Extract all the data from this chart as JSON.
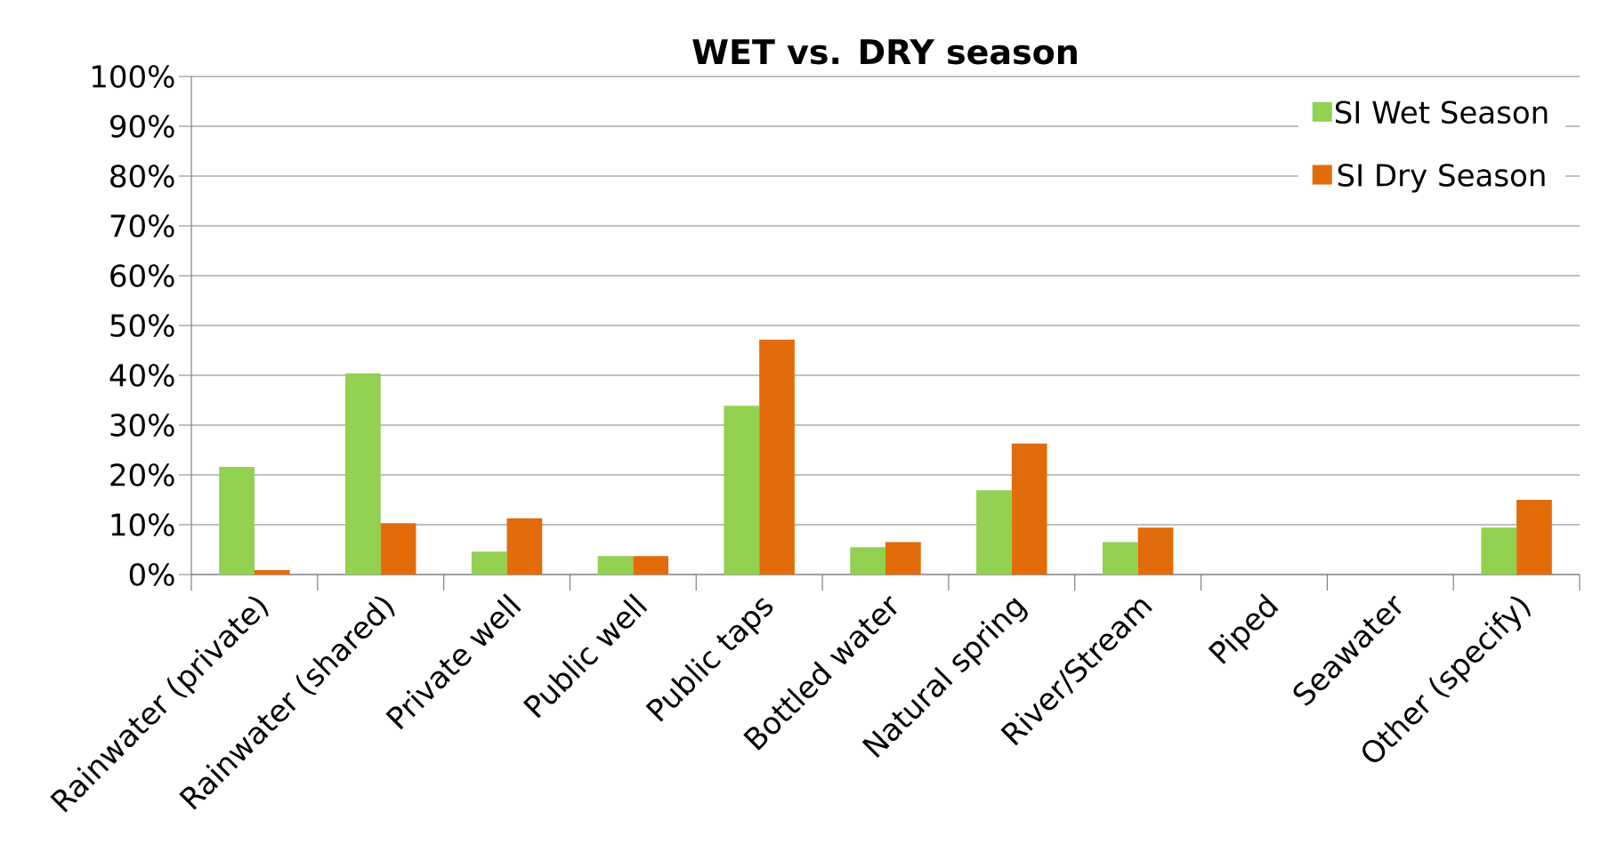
{
  "chart_data": {
    "type": "bar",
    "title": "WET vs. DRY season",
    "categories": [
      "Rainwater (private)",
      "Rainwater (shared)",
      "Private well",
      "Public well",
      "Public taps",
      "Bottled water",
      "Natural spring",
      "River/Stream",
      "Piped",
      "Seawater",
      "Other (specify)"
    ],
    "series": [
      {
        "name": "SI Wet Season",
        "color": "#92d050",
        "values": [
          21.6,
          40.4,
          4.6,
          3.7,
          33.9,
          5.5,
          16.9,
          6.5,
          0,
          0,
          9.4
        ]
      },
      {
        "name": "SI Dry Season",
        "color": "#e36c0a",
        "values": [
          0.9,
          10.3,
          11.3,
          3.7,
          47.2,
          6.5,
          26.3,
          9.4,
          0,
          0,
          15.0
        ]
      }
    ],
    "ylim": [
      0,
      100
    ],
    "yticks": [
      {
        "value": 0,
        "label": "0%"
      },
      {
        "value": 10,
        "label": "10%"
      },
      {
        "value": 20,
        "label": "20%"
      },
      {
        "value": 30,
        "label": "30%"
      },
      {
        "value": 40,
        "label": "40%"
      },
      {
        "value": 50,
        "label": "50%"
      },
      {
        "value": 60,
        "label": "60%"
      },
      {
        "value": 70,
        "label": "70%"
      },
      {
        "value": 80,
        "label": "80%"
      },
      {
        "value": 90,
        "label": "90%"
      },
      {
        "value": 100,
        "label": "100%"
      }
    ],
    "grid": "y",
    "legend": "top right"
  }
}
